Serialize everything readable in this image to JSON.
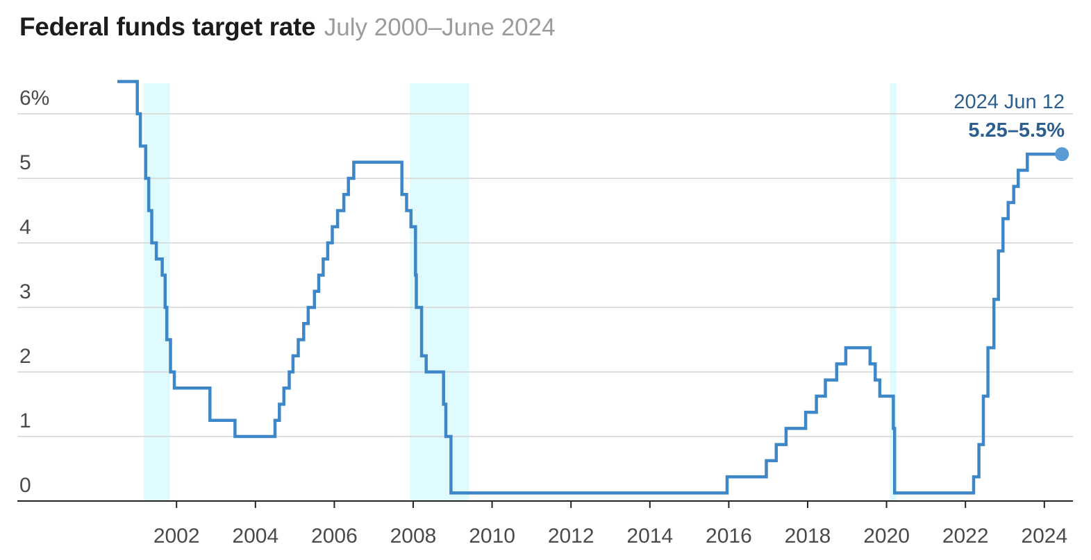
{
  "header": {
    "title": "Federal funds target rate",
    "subtitle": "July 2000–June 2024"
  },
  "chart_data": {
    "type": "line",
    "title": "Federal funds target rate",
    "subtitle": "July 2000–June 2024",
    "xlabel": "",
    "ylabel": "",
    "x_range": [
      "2000-07",
      "2024-06"
    ],
    "ylim": [
      0,
      6.5
    ],
    "y_ticks": [
      {
        "value": 0,
        "label": "0"
      },
      {
        "value": 1,
        "label": "1"
      },
      {
        "value": 2,
        "label": "2"
      },
      {
        "value": 3,
        "label": "3"
      },
      {
        "value": 4,
        "label": "4"
      },
      {
        "value": 5,
        "label": "5"
      },
      {
        "value": 6,
        "label": "6%"
      }
    ],
    "x_ticks": [
      "2002",
      "2004",
      "2006",
      "2008",
      "2010",
      "2012",
      "2014",
      "2016",
      "2018",
      "2020",
      "2022",
      "2024"
    ],
    "grid": "horizontal",
    "colors": {
      "line": "#3d87c9",
      "recession": "#e0fbfd",
      "grid": "#d4d4d4",
      "axis": "#222222",
      "annotation": "#2c5f8f"
    },
    "recessions": [
      {
        "start": "2001-03",
        "end": "2001-11"
      },
      {
        "start": "2007-12",
        "end": "2009-06"
      },
      {
        "start": "2020-02",
        "end": "2020-04"
      }
    ],
    "series": [
      {
        "values": [
          [
            "2000-07-01",
            6.5
          ],
          [
            "2001-01-03",
            6.0
          ],
          [
            "2001-01-31",
            5.5
          ],
          [
            "2001-03-20",
            5.0
          ],
          [
            "2001-04-18",
            4.5
          ],
          [
            "2001-05-15",
            4.0
          ],
          [
            "2001-06-27",
            3.75
          ],
          [
            "2001-08-21",
            3.5
          ],
          [
            "2001-09-17",
            3.0
          ],
          [
            "2001-10-02",
            2.5
          ],
          [
            "2001-11-06",
            2.0
          ],
          [
            "2001-12-11",
            1.75
          ],
          [
            "2002-11-06",
            1.25
          ],
          [
            "2003-06-25",
            1.0
          ],
          [
            "2004-06-30",
            1.25
          ],
          [
            "2004-08-10",
            1.5
          ],
          [
            "2004-09-21",
            1.75
          ],
          [
            "2004-11-10",
            2.0
          ],
          [
            "2004-12-14",
            2.25
          ],
          [
            "2005-02-02",
            2.5
          ],
          [
            "2005-03-22",
            2.75
          ],
          [
            "2005-05-03",
            3.0
          ],
          [
            "2005-06-30",
            3.25
          ],
          [
            "2005-08-09",
            3.5
          ],
          [
            "2005-09-20",
            3.75
          ],
          [
            "2005-11-01",
            4.0
          ],
          [
            "2005-12-13",
            4.25
          ],
          [
            "2006-01-31",
            4.5
          ],
          [
            "2006-03-28",
            4.75
          ],
          [
            "2006-05-10",
            5.0
          ],
          [
            "2006-06-29",
            5.25
          ],
          [
            "2007-09-18",
            4.75
          ],
          [
            "2007-10-31",
            4.5
          ],
          [
            "2007-12-11",
            4.25
          ],
          [
            "2008-01-22",
            3.5
          ],
          [
            "2008-01-30",
            3.0
          ],
          [
            "2008-03-18",
            2.25
          ],
          [
            "2008-04-30",
            2.0
          ],
          [
            "2008-10-08",
            1.5
          ],
          [
            "2008-10-29",
            1.0
          ],
          [
            "2008-12-16",
            0.125
          ],
          [
            "2015-12-16",
            0.375
          ],
          [
            "2016-12-14",
            0.625
          ],
          [
            "2017-03-15",
            0.875
          ],
          [
            "2017-06-14",
            1.125
          ],
          [
            "2017-12-13",
            1.375
          ],
          [
            "2018-03-21",
            1.625
          ],
          [
            "2018-06-13",
            1.875
          ],
          [
            "2018-09-26",
            2.125
          ],
          [
            "2018-12-19",
            2.375
          ],
          [
            "2019-07-31",
            2.125
          ],
          [
            "2019-09-18",
            1.875
          ],
          [
            "2019-10-30",
            1.625
          ],
          [
            "2020-03-03",
            1.125
          ],
          [
            "2020-03-15",
            0.125
          ],
          [
            "2022-03-16",
            0.375
          ],
          [
            "2022-05-04",
            0.875
          ],
          [
            "2022-06-15",
            1.625
          ],
          [
            "2022-07-27",
            2.375
          ],
          [
            "2022-09-21",
            3.125
          ],
          [
            "2022-11-02",
            3.875
          ],
          [
            "2022-12-14",
            4.375
          ],
          [
            "2023-02-01",
            4.625
          ],
          [
            "2023-03-22",
            4.875
          ],
          [
            "2023-05-03",
            5.125
          ],
          [
            "2023-07-26",
            5.375
          ],
          [
            "2024-06-12",
            5.375
          ]
        ]
      }
    ],
    "annotation": {
      "date_label": "2024 Jun 12",
      "value_label": "5.25–5.5%",
      "x": "2024-06-12",
      "y": 5.375
    }
  }
}
